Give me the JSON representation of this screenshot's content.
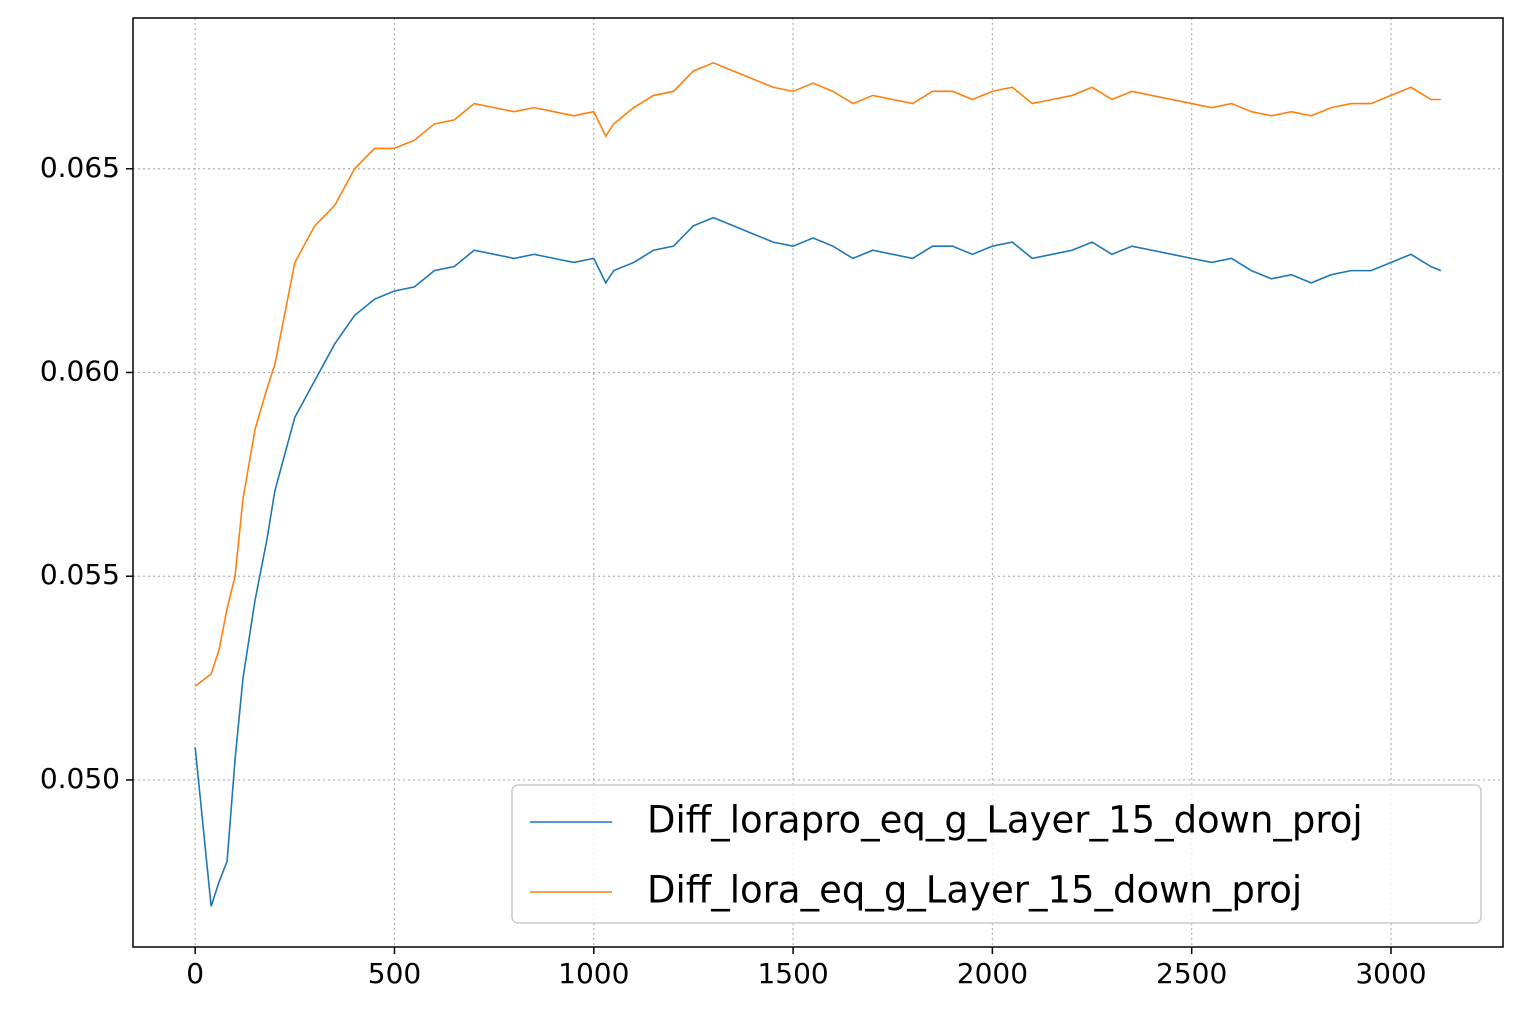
{
  "chart_data": {
    "type": "line",
    "x": [
      0,
      40,
      60,
      80,
      100,
      120,
      150,
      180,
      200,
      250,
      300,
      350,
      400,
      450,
      500,
      550,
      600,
      650,
      700,
      750,
      800,
      850,
      900,
      950,
      1000,
      1030,
      1050,
      1100,
      1150,
      1200,
      1250,
      1300,
      1350,
      1400,
      1450,
      1500,
      1550,
      1600,
      1650,
      1700,
      1750,
      1800,
      1850,
      1900,
      1950,
      2000,
      2050,
      2100,
      2150,
      2200,
      2250,
      2300,
      2350,
      2400,
      2450,
      2500,
      2550,
      2600,
      2650,
      2700,
      2750,
      2800,
      2850,
      2900,
      2950,
      3000,
      3050,
      3100,
      3125
    ],
    "series": [
      {
        "name": "Diff_lorapro_eq_g_Layer_15_down_proj",
        "color": "#1f77b4",
        "values": [
          0.0508,
          0.0469,
          0.0475,
          0.048,
          0.0505,
          0.0525,
          0.0544,
          0.0559,
          0.0571,
          0.0589,
          0.0598,
          0.0607,
          0.0614,
          0.0618,
          0.062,
          0.0621,
          0.0625,
          0.0626,
          0.063,
          0.0629,
          0.0628,
          0.0629,
          0.0628,
          0.0627,
          0.0628,
          0.0622,
          0.0625,
          0.0627,
          0.063,
          0.0631,
          0.0636,
          0.0638,
          0.0636,
          0.0634,
          0.0632,
          0.0631,
          0.0633,
          0.0631,
          0.0628,
          0.063,
          0.0629,
          0.0628,
          0.0631,
          0.0631,
          0.0629,
          0.0631,
          0.0632,
          0.0628,
          0.0629,
          0.063,
          0.0632,
          0.0629,
          0.0631,
          0.063,
          0.0629,
          0.0628,
          0.0627,
          0.0628,
          0.0625,
          0.0623,
          0.0624,
          0.0622,
          0.0624,
          0.0625,
          0.0625,
          0.0627,
          0.0629,
          0.0626,
          0.0625
        ]
      },
      {
        "name": "Diff_lora_eq_g_Layer_15_down_proj",
        "color": "#ff7f0e",
        "values": [
          0.0523,
          0.0526,
          0.0532,
          0.0542,
          0.055,
          0.0569,
          0.0586,
          0.0596,
          0.0602,
          0.0627,
          0.0636,
          0.0641,
          0.065,
          0.0655,
          0.0655,
          0.0657,
          0.0661,
          0.0662,
          0.0666,
          0.0665,
          0.0664,
          0.0665,
          0.0664,
          0.0663,
          0.0664,
          0.0658,
          0.0661,
          0.0665,
          0.0668,
          0.0669,
          0.0674,
          0.0676,
          0.0674,
          0.0672,
          0.067,
          0.0669,
          0.0671,
          0.0669,
          0.0666,
          0.0668,
          0.0667,
          0.0666,
          0.0669,
          0.0669,
          0.0667,
          0.0669,
          0.067,
          0.0666,
          0.0667,
          0.0668,
          0.067,
          0.0667,
          0.0669,
          0.0668,
          0.0667,
          0.0666,
          0.0665,
          0.0666,
          0.0664,
          0.0663,
          0.0664,
          0.0663,
          0.0665,
          0.0666,
          0.0666,
          0.0668,
          0.067,
          0.0667,
          0.0667
        ]
      }
    ],
    "xlim": [
      -156,
      3281
    ],
    "ylim": [
      0.0459,
      0.0687
    ],
    "xticks": [
      0,
      500,
      1000,
      1500,
      2000,
      2500,
      3000
    ],
    "yticks": [
      {
        "value": 0.05,
        "label": "0.050"
      },
      0.055,
      {
        "value": 0.06,
        "label": "0.060"
      },
      0.065
    ],
    "grid": true,
    "legend": "lower right"
  }
}
